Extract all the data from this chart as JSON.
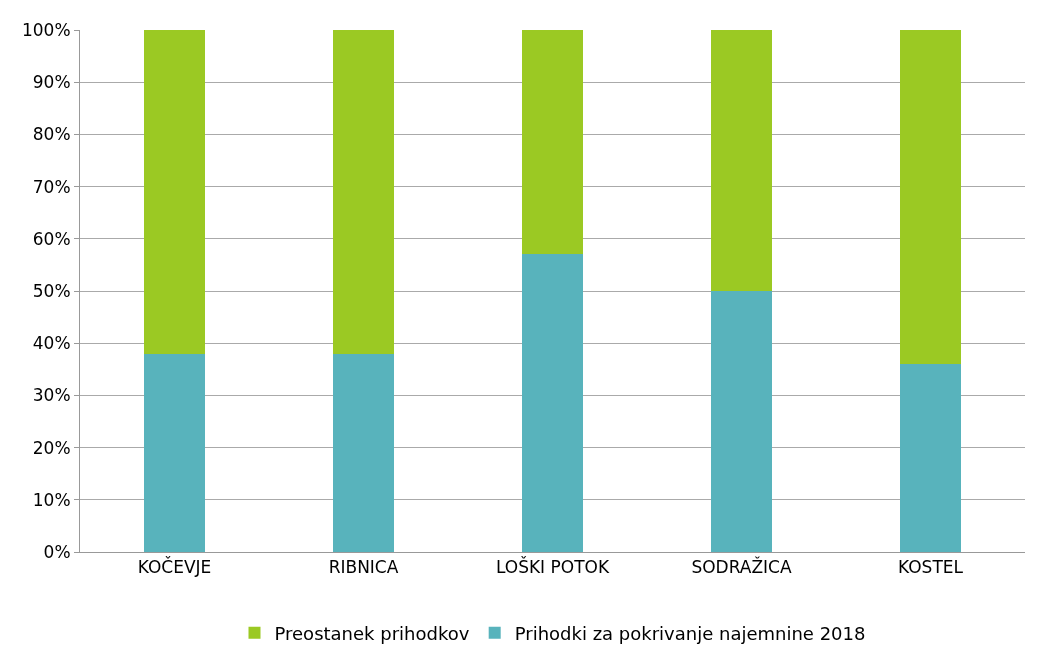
{
  "chart_data": {
    "type": "bar",
    "stacked": true,
    "categories": [
      "KOČEVJE",
      "RIBNICA",
      "LOŠKI POTOK",
      "SODRAŽICA",
      "KOSTEL"
    ],
    "series": [
      {
        "name": "Prihodki za pokrivanje najemnine 2018",
        "color": "#58b3bc",
        "values": [
          38,
          38,
          57,
          50,
          36
        ]
      },
      {
        "name": "Preostanek prihodkov",
        "color": "#9bc923",
        "values": [
          62,
          62,
          43,
          50,
          64
        ]
      }
    ],
    "ylim": [
      0,
      100
    ],
    "yticks": [
      {
        "value": 0,
        "label": "0%"
      },
      {
        "value": 10,
        "label": "10%"
      },
      {
        "value": 20,
        "label": "20%"
      },
      {
        "value": 30,
        "label": "30%"
      },
      {
        "value": 40,
        "label": "40%"
      },
      {
        "value": 50,
        "label": "50%"
      },
      {
        "value": 60,
        "label": "60%"
      },
      {
        "value": 70,
        "label": "70%"
      },
      {
        "value": 80,
        "label": "80%"
      },
      {
        "value": 90,
        "label": "90%"
      },
      {
        "value": 100,
        "label": "100%"
      }
    ],
    "grid": "y",
    "legend": "bottom"
  }
}
